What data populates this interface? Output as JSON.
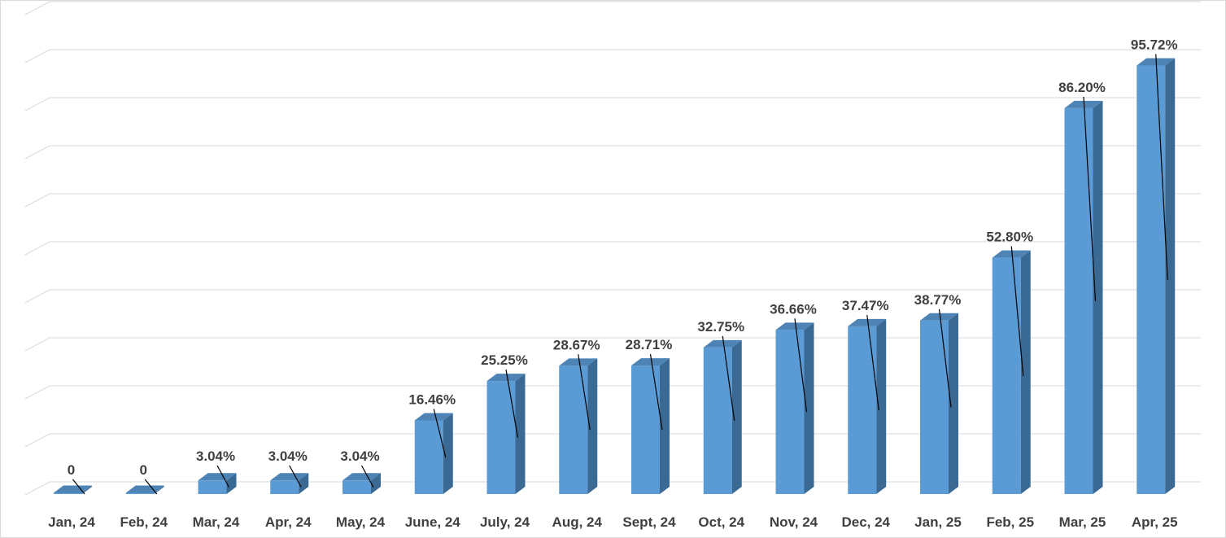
{
  "chart_data": {
    "type": "bar",
    "categories": [
      "Jan, 24",
      "Feb, 24",
      "Mar, 24",
      "Apr, 24",
      "May, 24",
      "June, 24",
      "July, 24",
      "Aug, 24",
      "Sept, 24",
      "Oct, 24",
      "Nov, 24",
      "Dec, 24",
      "Jan, 25",
      "Feb, 25",
      "Mar, 25",
      "Apr, 25"
    ],
    "values": [
      0,
      0,
      3.04,
      3.04,
      3.04,
      16.46,
      25.25,
      28.67,
      28.71,
      32.75,
      36.66,
      37.47,
      38.77,
      52.8,
      86.2,
      95.72
    ],
    "data_labels": [
      "0",
      "0",
      "3.04%",
      "3.04%",
      "3.04%",
      "16.46%",
      "25.25%",
      "28.67%",
      "28.71%",
      "32.75%",
      "36.66%",
      "37.47%",
      "38.77%",
      "52.80%",
      "86.20%",
      "95.72%"
    ],
    "title": "",
    "xlabel": "",
    "ylabel": "",
    "ylim": [
      0,
      100
    ],
    "grid": true,
    "legend": "none",
    "style": "3d-column",
    "colors": {
      "bar_front": "#5b9bd5",
      "bar_side": "#3a6a94",
      "bar_top": "#4d83b5",
      "gridline": "#d9d9d9",
      "label_text": "#404040",
      "leader_line": "#000000"
    }
  }
}
